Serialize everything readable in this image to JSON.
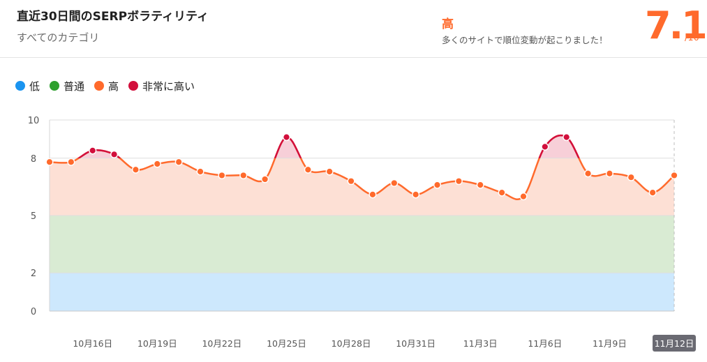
{
  "header": {
    "title": "直近30日間のSERPボラティリティ",
    "subtitle": "すべてのカテゴリ",
    "level_label": "高",
    "level_message": "多くのサイトで順位変動が起こりました！",
    "score": "7.1",
    "score_max": "/10"
  },
  "colors": {
    "low": "#1a94f0",
    "normal": "#2ea02e",
    "high": "#ff6a2c",
    "very_high": "#d20f3c",
    "low_band": "#cde8fd",
    "normal_band": "#d9ebd3",
    "high_band": "#fde0d5",
    "very_high_band": "#f7cfd8"
  },
  "legend": [
    {
      "label": "低",
      "color_key": "low"
    },
    {
      "label": "普通",
      "color_key": "normal"
    },
    {
      "label": "高",
      "color_key": "high"
    },
    {
      "label": "非常に高い",
      "color_key": "very_high"
    }
  ],
  "chart_data": {
    "type": "area",
    "y_ticks": [
      0,
      2,
      5,
      8,
      10
    ],
    "ylim": [
      0,
      10
    ],
    "bands": [
      {
        "name": "低",
        "from": 0,
        "to": 2
      },
      {
        "name": "普通",
        "from": 2,
        "to": 5
      },
      {
        "name": "高",
        "from": 5,
        "to": 8
      },
      {
        "name": "非常に高い",
        "from": 8,
        "to": 10
      }
    ],
    "x_labels": [
      "10月16日",
      "10月19日",
      "10月22日",
      "10月25日",
      "10月28日",
      "10月31日",
      "11月3日",
      "11月6日",
      "11月9日",
      "11月12日"
    ],
    "selected_label": "11月12日",
    "x": [
      "10月14日",
      "10月15日",
      "10月16日",
      "10月17日",
      "10月18日",
      "10月19日",
      "10月20日",
      "10月21日",
      "10月22日",
      "10月23日",
      "10月24日",
      "10月25日",
      "10月26日",
      "10月27日",
      "10月28日",
      "10月29日",
      "10月30日",
      "10月31日",
      "11月1日",
      "11月2日",
      "11月3日",
      "11月4日",
      "11月5日",
      "11月6日",
      "11月7日",
      "11月8日",
      "11月9日",
      "11月10日",
      "11月11日",
      "11月12日"
    ],
    "values": [
      7.8,
      7.8,
      8.4,
      8.2,
      7.4,
      7.7,
      7.8,
      7.3,
      7.1,
      7.1,
      6.9,
      9.1,
      7.4,
      7.3,
      6.8,
      6.1,
      6.7,
      6.1,
      6.6,
      6.8,
      6.6,
      6.2,
      6.0,
      8.6,
      9.1,
      7.2,
      7.2,
      7.0,
      6.2,
      7.1
    ]
  }
}
